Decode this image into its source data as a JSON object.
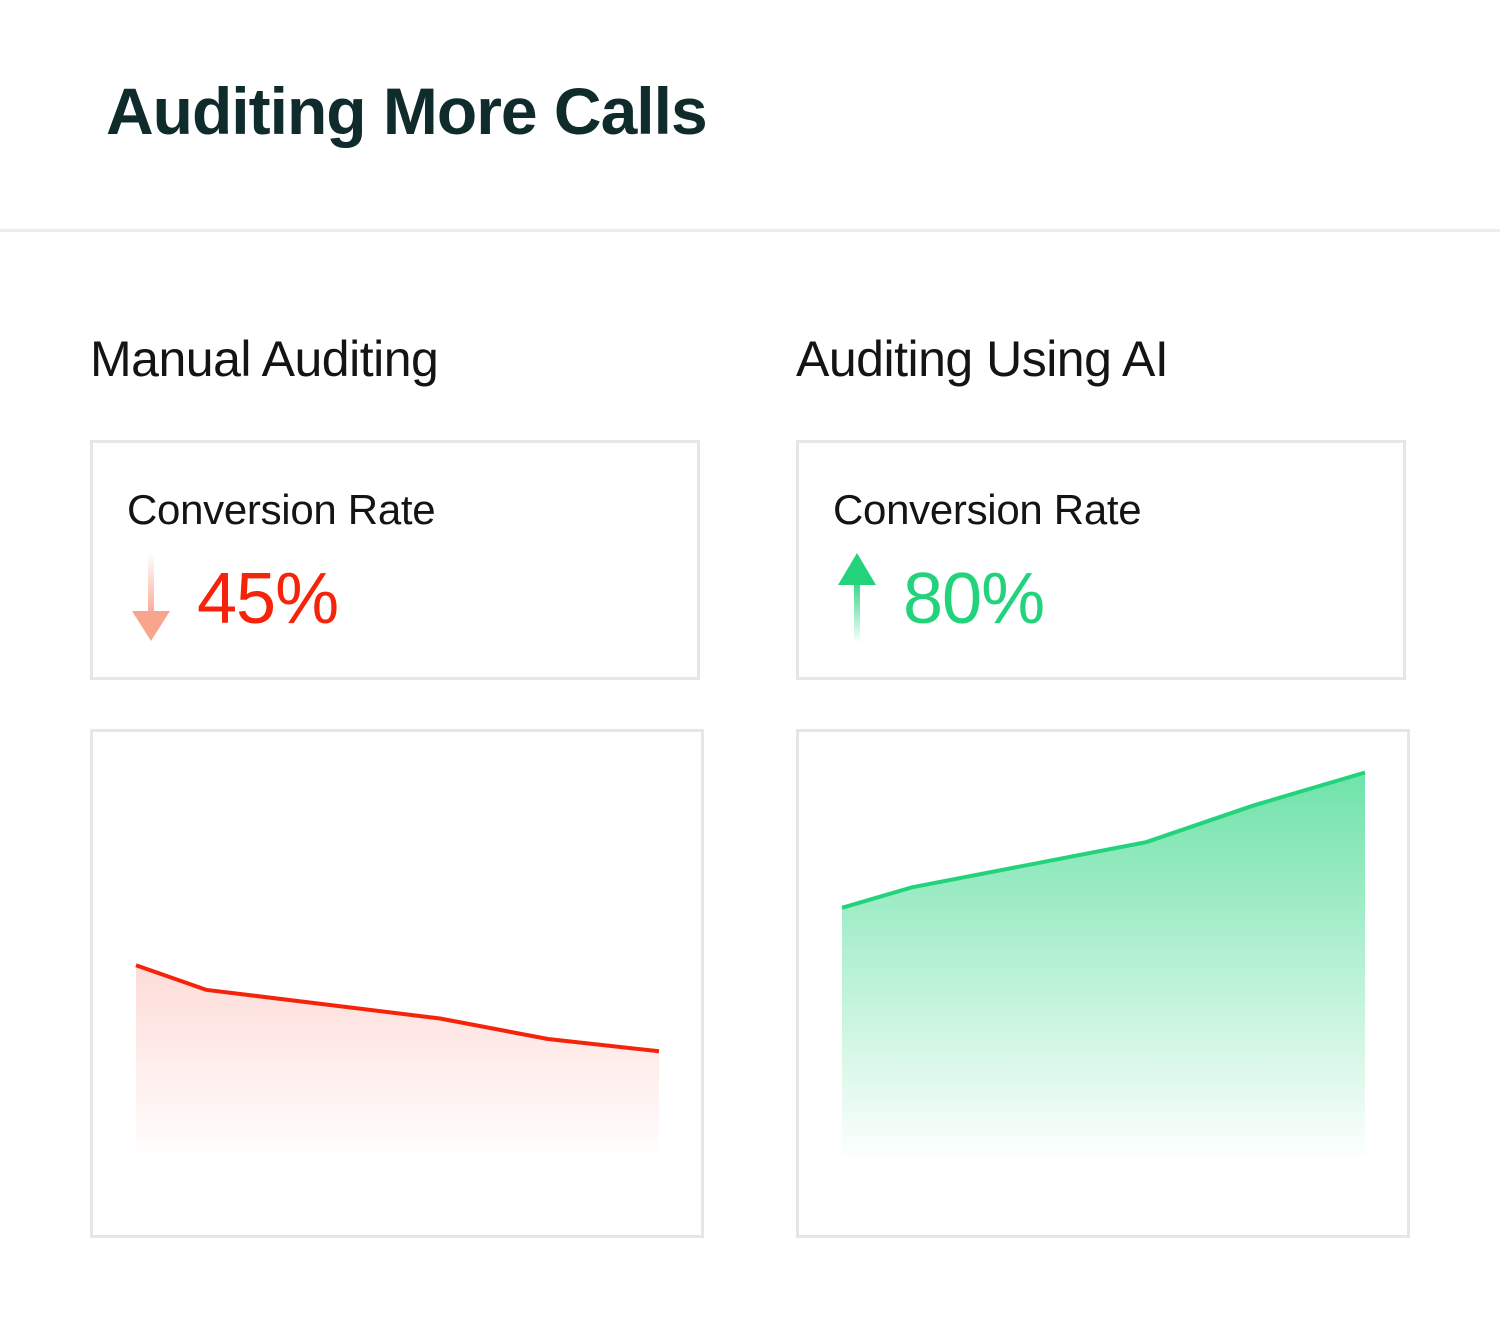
{
  "page": {
    "title": "Auditing More Calls"
  },
  "sections": {
    "manual": {
      "heading": "Manual Auditing",
      "kpi_label": "Conversion Rate",
      "kpi_value": "45%",
      "trend": "down",
      "color": "#f5230a"
    },
    "ai": {
      "heading": "Auditing Using AI",
      "kpi_label": "Conversion Rate",
      "kpi_value": "80%",
      "trend": "up",
      "color": "#22d37c"
    }
  },
  "chart_data": [
    {
      "type": "area",
      "x": [
        0,
        1,
        2,
        3,
        4
      ],
      "values": [
        48,
        42,
        35,
        30,
        27
      ],
      "ylim": [
        0,
        100
      ],
      "grid": false,
      "color": "#f5230a"
    },
    {
      "type": "area",
      "x": [
        0,
        1,
        2,
        3,
        4
      ],
      "values": [
        62,
        67,
        78,
        87,
        95
      ],
      "ylim": [
        0,
        100
      ],
      "grid": false,
      "color": "#22d37c"
    }
  ]
}
